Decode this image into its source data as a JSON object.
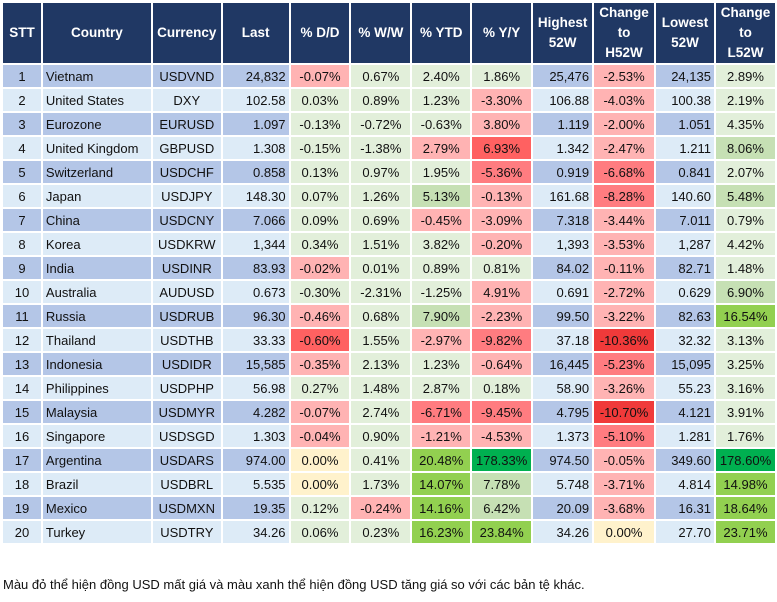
{
  "headers": [
    "STT",
    "Country",
    "Currency",
    "Last",
    "% D/D",
    "% W/W",
    "% YTD",
    "% Y/Y",
    "Highest\n52W",
    "Change\nto\nH52W",
    "Lowest\n52W",
    "Change\nto\nL52W"
  ],
  "palette": {
    "odd": "#b4c6e7",
    "even": "#ddebf7",
    "g": "#e2efda",
    "G": "#c6e0b4",
    "H": "#92d050",
    "X": "#00b050",
    "r": "#ffb3b3",
    "R": "#ff7c80",
    "S": "#ff6161",
    "T": "#f03a3a",
    "y": "#fff2cc"
  },
  "rows": [
    {
      "stt": "1",
      "country": "Vietnam",
      "currency": "USDVND",
      "last": "24,832",
      "dd": "-0.07%",
      "ww": "0.67%",
      "ytd": "2.40%",
      "yy": "1.86%",
      "high": "25,476",
      "chh": "-2.53%",
      "low": "24,135",
      "chl": "2.89%",
      "colors": [
        "r",
        "g",
        "g",
        "g",
        "r",
        "g"
      ]
    },
    {
      "stt": "2",
      "country": "United States",
      "currency": "DXY",
      "last": "102.58",
      "dd": "0.03%",
      "ww": "0.89%",
      "ytd": "1.23%",
      "yy": "-3.30%",
      "high": "106.88",
      "chh": "-4.03%",
      "low": "100.38",
      "chl": "2.19%",
      "colors": [
        "g",
        "g",
        "g",
        "r",
        "r",
        "g"
      ]
    },
    {
      "stt": "3",
      "country": "Eurozone",
      "currency": "EURUSD",
      "last": "1.097",
      "dd": "-0.13%",
      "ww": "-0.72%",
      "ytd": "-0.63%",
      "yy": "3.80%",
      "high": "1.119",
      "chh": "-2.00%",
      "low": "1.051",
      "chl": "4.35%",
      "colors": [
        "g",
        "g",
        "g",
        "r",
        "r",
        "g"
      ]
    },
    {
      "stt": "4",
      "country": "United Kingdom",
      "currency": "GBPUSD",
      "last": "1.308",
      "dd": "-0.15%",
      "ww": "-1.38%",
      "ytd": "2.79%",
      "yy": "6.93%",
      "high": "1.342",
      "chh": "-2.47%",
      "low": "1.211",
      "chl": "8.06%",
      "colors": [
        "g",
        "g",
        "r",
        "S",
        "r",
        "G"
      ]
    },
    {
      "stt": "5",
      "country": "Switzerland",
      "currency": "USDCHF",
      "last": "0.858",
      "dd": "0.13%",
      "ww": "0.97%",
      "ytd": "1.95%",
      "yy": "-5.36%",
      "high": "0.919",
      "chh": "-6.68%",
      "low": "0.841",
      "chl": "2.07%",
      "colors": [
        "g",
        "g",
        "g",
        "R",
        "R",
        "g"
      ]
    },
    {
      "stt": "6",
      "country": "Japan",
      "currency": "USDJPY",
      "last": "148.30",
      "dd": "0.07%",
      "ww": "1.26%",
      "ytd": "5.13%",
      "yy": "-0.13%",
      "high": "161.68",
      "chh": "-8.28%",
      "low": "140.60",
      "chl": "5.48%",
      "colors": [
        "g",
        "g",
        "G",
        "r",
        "R",
        "G"
      ]
    },
    {
      "stt": "7",
      "country": "China",
      "currency": "USDCNY",
      "last": "7.066",
      "dd": "0.09%",
      "ww": "0.69%",
      "ytd": "-0.45%",
      "yy": "-3.09%",
      "high": "7.318",
      "chh": "-3.44%",
      "low": "7.011",
      "chl": "0.79%",
      "colors": [
        "g",
        "g",
        "r",
        "r",
        "r",
        "g"
      ]
    },
    {
      "stt": "8",
      "country": "Korea",
      "currency": "USDKRW",
      "last": "1,344",
      "dd": "0.34%",
      "ww": "1.51%",
      "ytd": "3.82%",
      "yy": "-0.20%",
      "high": "1,393",
      "chh": "-3.53%",
      "low": "1,287",
      "chl": "4.42%",
      "colors": [
        "g",
        "g",
        "g",
        "r",
        "r",
        "g"
      ]
    },
    {
      "stt": "9",
      "country": "India",
      "currency": "USDINR",
      "last": "83.93",
      "dd": "-0.02%",
      "ww": "0.01%",
      "ytd": "0.89%",
      "yy": "0.81%",
      "high": "84.02",
      "chh": "-0.11%",
      "low": "82.71",
      "chl": "1.48%",
      "colors": [
        "r",
        "g",
        "g",
        "g",
        "r",
        "g"
      ]
    },
    {
      "stt": "10",
      "country": "Australia",
      "currency": "AUDUSD",
      "last": "0.673",
      "dd": "-0.30%",
      "ww": "-2.31%",
      "ytd": "-1.25%",
      "yy": "4.91%",
      "high": "0.691",
      "chh": "-2.72%",
      "low": "0.629",
      "chl": "6.90%",
      "colors": [
        "g",
        "g",
        "g",
        "r",
        "r",
        "G"
      ]
    },
    {
      "stt": "11",
      "country": "Russia",
      "currency": "USDRUB",
      "last": "96.30",
      "dd": "-0.46%",
      "ww": "0.68%",
      "ytd": "7.90%",
      "yy": "-2.23%",
      "high": "99.50",
      "chh": "-3.22%",
      "low": "82.63",
      "chl": "16.54%",
      "colors": [
        "r",
        "g",
        "G",
        "r",
        "r",
        "H"
      ]
    },
    {
      "stt": "12",
      "country": "Thailand",
      "currency": "USDTHB",
      "last": "33.33",
      "dd": "-0.60%",
      "ww": "1.55%",
      "ytd": "-2.97%",
      "yy": "-9.82%",
      "high": "37.18",
      "chh": "-10.36%",
      "low": "32.32",
      "chl": "3.13%",
      "colors": [
        "S",
        "g",
        "r",
        "R",
        "T",
        "g"
      ]
    },
    {
      "stt": "13",
      "country": "Indonesia",
      "currency": "USDIDR",
      "last": "15,585",
      "dd": "-0.35%",
      "ww": "2.13%",
      "ytd": "1.23%",
      "yy": "-0.64%",
      "high": "16,445",
      "chh": "-5.23%",
      "low": "15,095",
      "chl": "3.25%",
      "colors": [
        "r",
        "g",
        "g",
        "r",
        "R",
        "g"
      ]
    },
    {
      "stt": "14",
      "country": "Philippines",
      "currency": "USDPHP",
      "last": "56.98",
      "dd": "0.27%",
      "ww": "1.48%",
      "ytd": "2.87%",
      "yy": "0.18%",
      "high": "58.90",
      "chh": "-3.26%",
      "low": "55.23",
      "chl": "3.16%",
      "colors": [
        "g",
        "g",
        "g",
        "g",
        "r",
        "g"
      ]
    },
    {
      "stt": "15",
      "country": "Malaysia",
      "currency": "USDMYR",
      "last": "4.282",
      "dd": "-0.07%",
      "ww": "2.74%",
      "ytd": "-6.71%",
      "yy": "-9.45%",
      "high": "4.795",
      "chh": "-10.70%",
      "low": "4.121",
      "chl": "3.91%",
      "colors": [
        "r",
        "g",
        "R",
        "R",
        "T",
        "g"
      ]
    },
    {
      "stt": "16",
      "country": "Singapore",
      "currency": "USDSGD",
      "last": "1.303",
      "dd": "-0.04%",
      "ww": "0.90%",
      "ytd": "-1.21%",
      "yy": "-4.53%",
      "high": "1.373",
      "chh": "-5.10%",
      "low": "1.281",
      "chl": "1.76%",
      "colors": [
        "r",
        "g",
        "r",
        "r",
        "R",
        "g"
      ]
    },
    {
      "stt": "17",
      "country": "Argentina",
      "currency": "USDARS",
      "last": "974.00",
      "dd": "0.00%",
      "ww": "0.41%",
      "ytd": "20.48%",
      "yy": "178.33%",
      "high": "974.50",
      "chh": "-0.05%",
      "low": "349.60",
      "chl": "178.60%",
      "colors": [
        "y",
        "g",
        "H",
        "X",
        "r",
        "X"
      ]
    },
    {
      "stt": "18",
      "country": "Brazil",
      "currency": "USDBRL",
      "last": "5.535",
      "dd": "0.00%",
      "ww": "1.73%",
      "ytd": "14.07%",
      "yy": "7.78%",
      "high": "5.748",
      "chh": "-3.71%",
      "low": "4.814",
      "chl": "14.98%",
      "colors": [
        "y",
        "g",
        "H",
        "G",
        "r",
        "H"
      ]
    },
    {
      "stt": "19",
      "country": "Mexico",
      "currency": "USDMXN",
      "last": "19.35",
      "dd": "0.12%",
      "ww": "-0.24%",
      "ytd": "14.16%",
      "yy": "6.42%",
      "high": "20.09",
      "chh": "-3.68%",
      "low": "16.31",
      "chl": "18.64%",
      "colors": [
        "g",
        "r",
        "H",
        "G",
        "r",
        "H"
      ]
    },
    {
      "stt": "20",
      "country": "Turkey",
      "currency": "USDTRY",
      "last": "34.26",
      "dd": "0.06%",
      "ww": "0.23%",
      "ytd": "16.23%",
      "yy": "23.84%",
      "high": "34.26",
      "chh": "0.00%",
      "low": "27.70",
      "chl": "23.71%",
      "colors": [
        "g",
        "g",
        "H",
        "H",
        "y",
        "H"
      ]
    }
  ],
  "footnote": "Màu đỏ thể hiện đồng USD mất giá và màu xanh thể hiện đồng USD tăng giá so với các bản tệ khác."
}
